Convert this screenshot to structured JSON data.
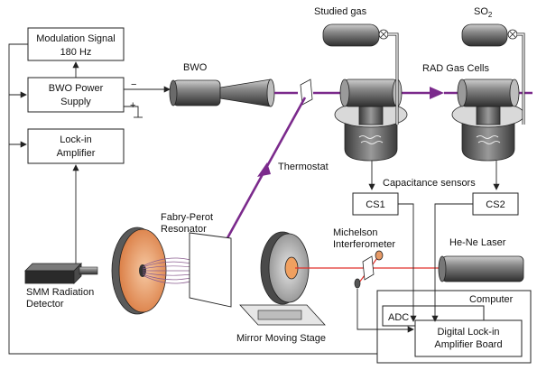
{
  "blocks": {
    "modulation_line1": "Modulation Signal",
    "modulation_line2": "180 Hz",
    "bwo_power_line1": "BWO Power",
    "bwo_power_line2": "Supply",
    "lockin_line1": "Lock-in",
    "lockin_line2": "Amplifier",
    "cs1": "CS1",
    "cs2": "CS2",
    "adc": "ADC",
    "digital_lockin_line1": "Digital Lock-in",
    "digital_lockin_line2": "Amplifier Board",
    "computer": "Computer"
  },
  "labels": {
    "bwo": "BWO",
    "studied_gas": "Studied gas",
    "so2_main": "SO",
    "so2_sub": "2",
    "rad_gas_cells": "RAD Gas Cells",
    "thermostat": "Thermostat",
    "capacitance_sensors": "Capacitance sensors",
    "fabry_perot_line1": "Fabry-Perot",
    "fabry_perot_line2": "Resonator",
    "michelson_line1": "Michelson",
    "michelson_line2": "Interferometer",
    "he_ne_laser": "He-Ne Laser",
    "smm_line1": "SMM Radiation",
    "smm_line2": "Detector",
    "mirror_stage": "Mirror Moving Stage",
    "minus": "−",
    "plus": "+"
  },
  "colors": {
    "beam": "#7b2a8c",
    "laser": "#e0302a",
    "copper": "#e79a66"
  }
}
